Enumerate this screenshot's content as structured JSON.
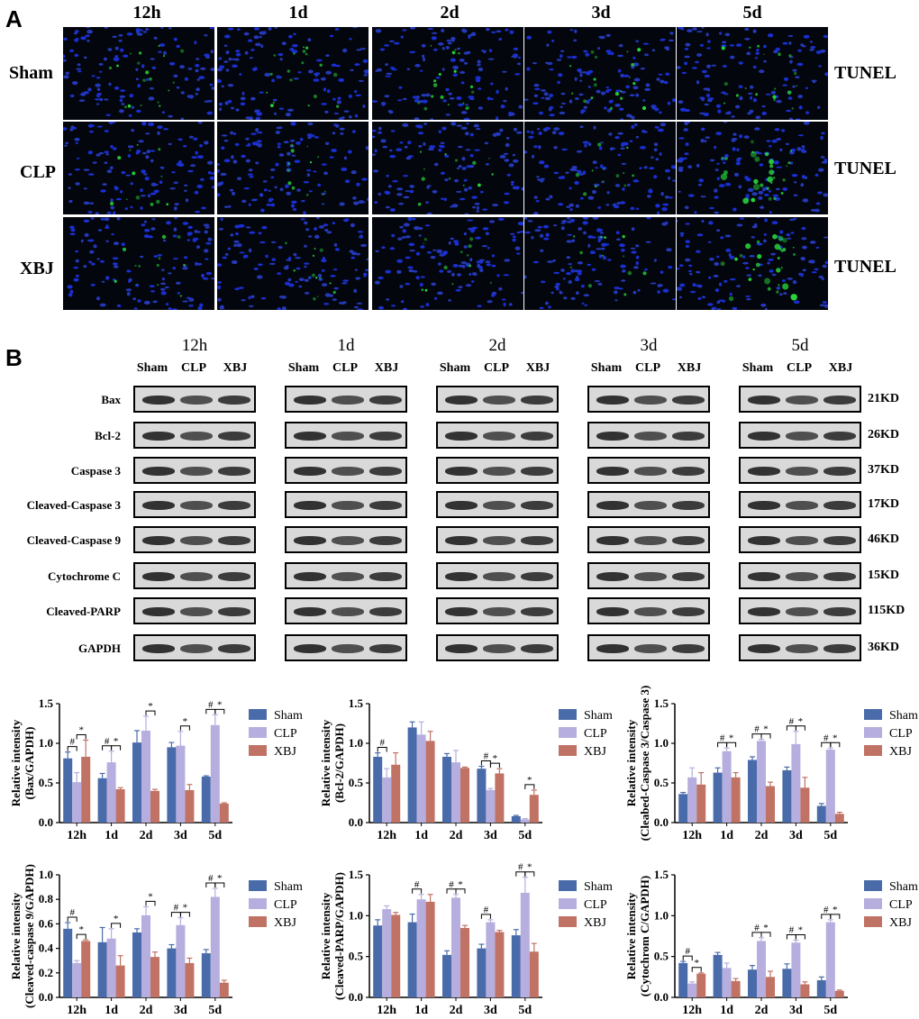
{
  "panelA": {
    "letter": "A",
    "timepoints": [
      "12h",
      "1d",
      "2d",
      "3d",
      "5d"
    ],
    "groups": [
      "Sham",
      "CLP",
      "XBJ"
    ],
    "stain": "TUNEL"
  },
  "panelB": {
    "letter": "B",
    "timepoints": [
      "12h",
      "1d",
      "2d",
      "3d",
      "5d"
    ],
    "lanes": [
      "Sham",
      "CLP",
      "XBJ"
    ],
    "proteins": [
      "Bax",
      "Bcl-2",
      "Caspase 3",
      "Cleaved-Caspase 3",
      "Cleaved-Caspase 9",
      "Cytochrome C",
      "Cleaved-PARP",
      "GAPDH"
    ],
    "weights": [
      "21KD",
      "26KD",
      "37KD",
      "17KD",
      "46KD",
      "15KD",
      "115KD",
      "36KD"
    ]
  },
  "colors": {
    "Sham": "#4a6ba9",
    "CLP": "#b6aede",
    "XBJ": "#c07264"
  },
  "chart_data": [
    {
      "type": "bar",
      "categories": [
        "12h",
        "1d",
        "2d",
        "3d",
        "5d"
      ],
      "ylabel": "Relative intensity\n(Bax/GAPDH)",
      "ylim": [
        0,
        1.5
      ],
      "yticks": [
        "0.0",
        "0.5",
        "1.0",
        "1.5"
      ],
      "legend": "right",
      "series": [
        {
          "name": "Sham",
          "values": [
            0.81,
            0.56,
            1.01,
            0.95,
            0.58
          ],
          "err": [
            0.08,
            0.06,
            0.15,
            0.06,
            0.01
          ]
        },
        {
          "name": "CLP",
          "values": [
            0.51,
            0.76,
            1.16,
            0.97,
            1.23
          ],
          "err": [
            0.12,
            0.14,
            0.18,
            0.18,
            0.13
          ]
        },
        {
          "name": "XBJ",
          "values": [
            0.83,
            0.42,
            0.4,
            0.41,
            0.24
          ],
          "err": [
            0.21,
            0.02,
            0.02,
            0.07,
            0.01
          ]
        }
      ],
      "annotations": [
        {
          "cat": 0,
          "a": 0,
          "b": 1,
          "sym": "#"
        },
        {
          "cat": 0,
          "a": 1,
          "b": 2,
          "sym": "*"
        },
        {
          "cat": 1,
          "a": 0,
          "b": 1,
          "sym": "#"
        },
        {
          "cat": 1,
          "a": 1,
          "b": 2,
          "sym": "*"
        },
        {
          "cat": 2,
          "a": 1,
          "b": 2,
          "sym": "*"
        },
        {
          "cat": 3,
          "a": 1,
          "b": 2,
          "sym": "*"
        },
        {
          "cat": 4,
          "a": 0,
          "b": 1,
          "sym": "#"
        },
        {
          "cat": 4,
          "a": 1,
          "b": 2,
          "sym": "*"
        }
      ]
    },
    {
      "type": "bar",
      "categories": [
        "12h",
        "1d",
        "2d",
        "3d",
        "5d"
      ],
      "ylabel": "Relative intensity\n(Bcl-2/GAPDH)",
      "ylim": [
        0,
        1.5
      ],
      "yticks": [
        "0.0",
        "0.5",
        "1.0",
        "1.5"
      ],
      "legend": "right",
      "series": [
        {
          "name": "Sham",
          "values": [
            0.83,
            1.2,
            0.83,
            0.68,
            0.08
          ],
          "err": [
            0.05,
            0.07,
            0.04,
            0.03,
            0.01
          ]
        },
        {
          "name": "CLP",
          "values": [
            0.57,
            1.11,
            0.76,
            0.41,
            0.04
          ],
          "err": [
            0.11,
            0.16,
            0.15,
            0.02,
            0.01
          ]
        },
        {
          "name": "XBJ",
          "values": [
            0.73,
            1.03,
            0.69,
            0.62,
            0.35
          ],
          "err": [
            0.15,
            0.12,
            0.01,
            0.06,
            0.06
          ]
        }
      ],
      "annotations": [
        {
          "cat": 0,
          "a": 0,
          "b": 1,
          "sym": "#"
        },
        {
          "cat": 3,
          "a": 0,
          "b": 1,
          "sym": "#"
        },
        {
          "cat": 3,
          "a": 1,
          "b": 2,
          "sym": "*"
        },
        {
          "cat": 4,
          "a": 1,
          "b": 2,
          "sym": "*"
        }
      ]
    },
    {
      "type": "bar",
      "categories": [
        "12h",
        "1d",
        "2d",
        "3d",
        "5d"
      ],
      "ylabel": "Relative intensity\n(Cleabed-Caspase 3/Caspase 3)",
      "ylim": [
        0,
        1.5
      ],
      "yticks": [
        "0.0",
        "0.5",
        "1.0",
        "1.5"
      ],
      "legend": "right",
      "series": [
        {
          "name": "Sham",
          "values": [
            0.36,
            0.63,
            0.79,
            0.66,
            0.21
          ],
          "err": [
            0.02,
            0.06,
            0.04,
            0.04,
            0.03
          ]
        },
        {
          "name": "CLP",
          "values": [
            0.57,
            0.9,
            1.03,
            0.99,
            0.92
          ],
          "err": [
            0.12,
            0.04,
            0.02,
            0.16,
            0.02
          ]
        },
        {
          "name": "XBJ",
          "values": [
            0.48,
            0.57,
            0.46,
            0.44,
            0.11
          ],
          "err": [
            0.15,
            0.06,
            0.05,
            0.13,
            0.02
          ]
        }
      ],
      "annotations": [
        {
          "cat": 1,
          "a": 0,
          "b": 1,
          "sym": "#"
        },
        {
          "cat": 1,
          "a": 1,
          "b": 2,
          "sym": "*"
        },
        {
          "cat": 2,
          "a": 0,
          "b": 1,
          "sym": "#"
        },
        {
          "cat": 2,
          "a": 1,
          "b": 2,
          "sym": "*"
        },
        {
          "cat": 3,
          "a": 0,
          "b": 1,
          "sym": "#"
        },
        {
          "cat": 3,
          "a": 1,
          "b": 2,
          "sym": "*"
        },
        {
          "cat": 4,
          "a": 0,
          "b": 1,
          "sym": "#"
        },
        {
          "cat": 4,
          "a": 1,
          "b": 2,
          "sym": "*"
        }
      ]
    },
    {
      "type": "bar",
      "categories": [
        "12h",
        "1d",
        "2d",
        "3d",
        "5d"
      ],
      "ylabel": "Relative intensity\n(Cleaved-caspase 9/GAPDH)",
      "ylim": [
        0,
        1.0
      ],
      "yticks": [
        "0.0",
        "0.2",
        "0.4",
        "0.6",
        "0.8",
        "1.0"
      ],
      "legend": "right",
      "series": [
        {
          "name": "Sham",
          "values": [
            0.56,
            0.45,
            0.53,
            0.4,
            0.36
          ],
          "err": [
            0.05,
            0.12,
            0.03,
            0.03,
            0.03
          ]
        },
        {
          "name": "CLP",
          "values": [
            0.28,
            0.48,
            0.67,
            0.59,
            0.82
          ],
          "err": [
            0.02,
            0.08,
            0.07,
            0.06,
            0.07
          ]
        },
        {
          "name": "XBJ",
          "values": [
            0.46,
            0.26,
            0.33,
            0.28,
            0.12
          ],
          "err": [
            0.01,
            0.08,
            0.04,
            0.04,
            0.02
          ]
        }
      ],
      "annotations": [
        {
          "cat": 0,
          "a": 0,
          "b": 1,
          "sym": "#"
        },
        {
          "cat": 0,
          "a": 1,
          "b": 2,
          "sym": "*"
        },
        {
          "cat": 1,
          "a": 1,
          "b": 2,
          "sym": "*"
        },
        {
          "cat": 2,
          "a": 1,
          "b": 2,
          "sym": "*"
        },
        {
          "cat": 3,
          "a": 0,
          "b": 1,
          "sym": "#"
        },
        {
          "cat": 3,
          "a": 1,
          "b": 2,
          "sym": "*"
        },
        {
          "cat": 4,
          "a": 0,
          "b": 1,
          "sym": "#"
        },
        {
          "cat": 4,
          "a": 1,
          "b": 2,
          "sym": "*"
        }
      ]
    },
    {
      "type": "bar",
      "categories": [
        "12h",
        "1d",
        "2d",
        "3d",
        "5d"
      ],
      "ylabel": "Relative intensity\n(Cleaved-PARP/GAPDH)",
      "ylim": [
        0,
        1.5
      ],
      "yticks": [
        "0.0",
        "0.5",
        "1.0",
        "1.5"
      ],
      "legend": "right",
      "series": [
        {
          "name": "Sham",
          "values": [
            0.88,
            0.92,
            0.52,
            0.6,
            0.76
          ],
          "err": [
            0.07,
            0.1,
            0.05,
            0.05,
            0.07
          ]
        },
        {
          "name": "CLP",
          "values": [
            1.08,
            1.2,
            1.22,
            0.92,
            1.28
          ],
          "err": [
            0.04,
            0.06,
            0.04,
            0.03,
            0.19
          ]
        },
        {
          "name": "XBJ",
          "values": [
            1.01,
            1.17,
            0.85,
            0.8,
            0.56
          ],
          "err": [
            0.03,
            0.09,
            0.03,
            0.02,
            0.1
          ]
        }
      ],
      "annotations": [
        {
          "cat": 1,
          "a": 0,
          "b": 1,
          "sym": "#"
        },
        {
          "cat": 2,
          "a": 0,
          "b": 1,
          "sym": "#"
        },
        {
          "cat": 2,
          "a": 1,
          "b": 2,
          "sym": "*"
        },
        {
          "cat": 3,
          "a": 0,
          "b": 1,
          "sym": "#"
        },
        {
          "cat": 4,
          "a": 0,
          "b": 1,
          "sym": "#"
        },
        {
          "cat": 4,
          "a": 1,
          "b": 2,
          "sym": "*"
        }
      ]
    },
    {
      "type": "bar",
      "categories": [
        "12h",
        "1d",
        "2d",
        "3d",
        "5d"
      ],
      "ylabel": "Relative intensity\n(Cytochrom C/GAPDH)",
      "ylim": [
        0,
        1.5
      ],
      "yticks": [
        "0.0",
        "0.5",
        "1.0",
        "1.5"
      ],
      "legend": "right",
      "series": [
        {
          "name": "Sham",
          "values": [
            0.42,
            0.52,
            0.34,
            0.35,
            0.21
          ],
          "err": [
            0.02,
            0.03,
            0.05,
            0.06,
            0.04
          ]
        },
        {
          "name": "CLP",
          "values": [
            0.17,
            0.36,
            0.69,
            0.67,
            0.92
          ],
          "err": [
            0.02,
            0.06,
            0.04,
            0.03,
            0.03
          ]
        },
        {
          "name": "XBJ",
          "values": [
            0.29,
            0.2,
            0.25,
            0.16,
            0.08
          ],
          "err": [
            0.01,
            0.03,
            0.07,
            0.03,
            0.01
          ]
        }
      ],
      "annotations": [
        {
          "cat": 0,
          "a": 0,
          "b": 1,
          "sym": "#"
        },
        {
          "cat": 0,
          "a": 1,
          "b": 2,
          "sym": "*"
        },
        {
          "cat": 2,
          "a": 0,
          "b": 1,
          "sym": "#"
        },
        {
          "cat": 2,
          "a": 1,
          "b": 2,
          "sym": "*"
        },
        {
          "cat": 3,
          "a": 0,
          "b": 1,
          "sym": "#"
        },
        {
          "cat": 3,
          "a": 1,
          "b": 2,
          "sym": "*"
        },
        {
          "cat": 4,
          "a": 0,
          "b": 1,
          "sym": "#"
        },
        {
          "cat": 4,
          "a": 1,
          "b": 2,
          "sym": "*"
        }
      ]
    }
  ]
}
